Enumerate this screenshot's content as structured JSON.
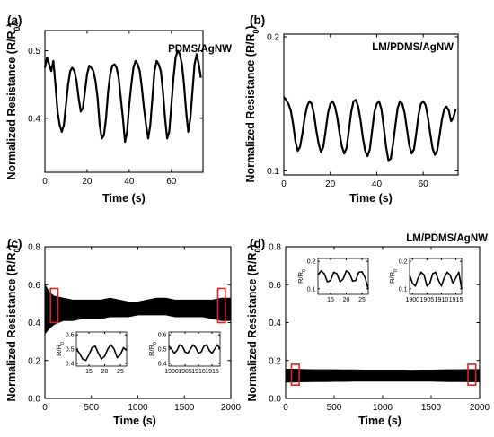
{
  "chart_data": [
    {
      "id": "a",
      "type": "line",
      "panel_label": "(a)",
      "annotation": "PDMS/AgNW",
      "xlabel": "Time (s)",
      "ylabel": "Normalized Resistance (R/R0)",
      "xlim": [
        0,
        75
      ],
      "ylim": [
        0.32,
        0.53
      ],
      "x_ticks": [
        0,
        20,
        40,
        60
      ],
      "y_ticks": [
        0.4,
        0.5
      ],
      "y_tick_labels": [
        "0.4",
        "0.5"
      ],
      "series": [
        {
          "color": "#000000",
          "x": [
            0,
            1,
            2,
            3,
            4,
            5,
            6,
            7,
            8,
            9,
            10,
            11,
            12,
            13,
            14,
            15,
            16,
            17,
            18,
            19,
            20,
            21,
            22,
            23,
            24,
            25,
            26,
            27,
            28,
            29,
            30,
            31,
            32,
            33,
            34,
            35,
            36,
            37,
            38,
            39,
            40,
            41,
            42,
            43,
            44,
            45,
            46,
            47,
            48,
            49,
            50,
            51,
            52,
            53,
            54,
            55,
            56,
            57,
            58,
            59,
            60,
            61,
            62,
            63,
            64,
            65,
            66,
            67,
            68,
            69,
            70,
            71,
            72,
            73,
            74
          ],
          "y": [
            0.475,
            0.49,
            0.48,
            0.47,
            0.485,
            0.45,
            0.41,
            0.39,
            0.38,
            0.39,
            0.42,
            0.45,
            0.47,
            0.475,
            0.47,
            0.455,
            0.43,
            0.41,
            0.415,
            0.44,
            0.465,
            0.478,
            0.475,
            0.47,
            0.455,
            0.43,
            0.39,
            0.37,
            0.375,
            0.4,
            0.44,
            0.465,
            0.478,
            0.48,
            0.475,
            0.46,
            0.43,
            0.4,
            0.365,
            0.38,
            0.42,
            0.45,
            0.475,
            0.485,
            0.48,
            0.47,
            0.445,
            0.415,
            0.39,
            0.37,
            0.39,
            0.43,
            0.47,
            0.485,
            0.48,
            0.47,
            0.44,
            0.4,
            0.37,
            0.38,
            0.42,
            0.46,
            0.49,
            0.5,
            0.495,
            0.48,
            0.45,
            0.41,
            0.38,
            0.4,
            0.44,
            0.48,
            0.495,
            0.48,
            0.46
          ]
        }
      ]
    },
    {
      "id": "b",
      "type": "line",
      "panel_label": "(b)",
      "annotation": "LM/PDMS/AgNW",
      "xlabel": "Time (s)",
      "ylabel": "Normalized Resistance (R/R0)",
      "xlim": [
        0,
        75
      ],
      "ylim": [
        0.097,
        0.202
      ],
      "x_ticks": [
        0,
        20,
        40,
        60
      ],
      "y_ticks": [
        0.1,
        0.2
      ],
      "y_tick_labels": [
        "0.1",
        "0.2"
      ],
      "series": [
        {
          "color": "#000000",
          "x": [
            0,
            1,
            2,
            3,
            4,
            5,
            6,
            7,
            8,
            9,
            10,
            11,
            12,
            13,
            14,
            15,
            16,
            17,
            18,
            19,
            20,
            21,
            22,
            23,
            24,
            25,
            26,
            27,
            28,
            29,
            30,
            31,
            32,
            33,
            34,
            35,
            36,
            37,
            38,
            39,
            40,
            41,
            42,
            43,
            44,
            45,
            46,
            47,
            48,
            49,
            50,
            51,
            52,
            53,
            54,
            55,
            56,
            57,
            58,
            59,
            60,
            61,
            62,
            63,
            64,
            65,
            66,
            67,
            68,
            69,
            70,
            71,
            72,
            73,
            74
          ],
          "y": [
            0.155,
            0.153,
            0.15,
            0.145,
            0.135,
            0.122,
            0.115,
            0.118,
            0.128,
            0.14,
            0.148,
            0.152,
            0.15,
            0.142,
            0.13,
            0.12,
            0.114,
            0.118,
            0.13,
            0.143,
            0.15,
            0.152,
            0.148,
            0.14,
            0.128,
            0.118,
            0.113,
            0.117,
            0.13,
            0.144,
            0.152,
            0.153,
            0.148,
            0.138,
            0.125,
            0.115,
            0.111,
            0.116,
            0.13,
            0.144,
            0.15,
            0.152,
            0.146,
            0.133,
            0.118,
            0.108,
            0.109,
            0.12,
            0.134,
            0.147,
            0.152,
            0.15,
            0.143,
            0.131,
            0.119,
            0.113,
            0.116,
            0.128,
            0.142,
            0.15,
            0.152,
            0.149,
            0.14,
            0.128,
            0.117,
            0.112,
            0.115,
            0.126,
            0.138,
            0.146,
            0.148,
            0.145,
            0.137,
            0.14,
            0.146
          ]
        }
      ]
    },
    {
      "id": "c",
      "type": "line",
      "panel_label": "(c)",
      "xlabel": "Time (s)",
      "ylabel": "Normalized Resistance (R/R0)",
      "xlim": [
        0,
        2000
      ],
      "ylim": [
        0,
        0.8
      ],
      "x_ticks": [
        0,
        500,
        1000,
        1500,
        2000
      ],
      "y_ticks": [
        0,
        0.2,
        0.4,
        0.6,
        0.8
      ],
      "y_tick_labels": [
        "0.0",
        "0.2",
        "0.4",
        "0.6",
        "0.8"
      ],
      "band": {
        "x": [
          0,
          50,
          100,
          200,
          300,
          400,
          500,
          600,
          700,
          800,
          900,
          1000,
          1100,
          1200,
          1300,
          1400,
          1500,
          1600,
          1700,
          1800,
          1900,
          2000
        ],
        "upper": [
          0.6,
          0.56,
          0.54,
          0.53,
          0.52,
          0.52,
          0.52,
          0.52,
          0.53,
          0.52,
          0.51,
          0.51,
          0.52,
          0.53,
          0.53,
          0.52,
          0.52,
          0.52,
          0.52,
          0.52,
          0.53,
          0.53
        ],
        "lower": [
          0.34,
          0.37,
          0.39,
          0.41,
          0.41,
          0.42,
          0.42,
          0.42,
          0.43,
          0.43,
          0.43,
          0.44,
          0.44,
          0.44,
          0.44,
          0.43,
          0.43,
          0.43,
          0.43,
          0.42,
          0.41,
          0.41
        ],
        "color": "#000000"
      },
      "highlight_ranges": [
        [
          60,
          140
        ],
        [
          1860,
          1940
        ]
      ],
      "highlight_y": [
        0.4,
        0.58
      ],
      "highlight_color": "#e02020",
      "insets": [
        {
          "ylabel": "R/R0",
          "xlim": [
            11,
            27
          ],
          "ylim": [
            0.38,
            0.62
          ],
          "x_ticks": [
            15,
            20,
            25
          ],
          "y_ticks": [
            0.4,
            0.5,
            0.6
          ],
          "y_tick_labels": [
            "0.4",
            "0.5",
            "0.6"
          ],
          "x": [
            11,
            12,
            13,
            14,
            15,
            16,
            17,
            18,
            19,
            20,
            21,
            22,
            23,
            24,
            25,
            26,
            27
          ],
          "y": [
            0.5,
            0.47,
            0.43,
            0.42,
            0.46,
            0.51,
            0.52,
            0.47,
            0.43,
            0.45,
            0.5,
            0.53,
            0.5,
            0.44,
            0.46,
            0.51,
            0.49
          ]
        },
        {
          "ylabel": "R/R0",
          "xlim": [
            1899,
            1918
          ],
          "ylim": [
            0.38,
            0.62
          ],
          "x_ticks": [
            1900,
            1905,
            1910,
            1915
          ],
          "y_ticks": [
            0.4,
            0.5,
            0.6
          ],
          "y_tick_labels": [
            "0.4",
            "0.5",
            "0.6"
          ],
          "x": [
            1899,
            1900,
            1901,
            1902,
            1903,
            1904,
            1905,
            1906,
            1907,
            1908,
            1909,
            1910,
            1911,
            1912,
            1913,
            1914,
            1915,
            1916,
            1917,
            1918
          ],
          "y": [
            0.52,
            0.5,
            0.47,
            0.49,
            0.53,
            0.52,
            0.48,
            0.47,
            0.5,
            0.53,
            0.51,
            0.47,
            0.48,
            0.52,
            0.53,
            0.49,
            0.47,
            0.5,
            0.53,
            0.5
          ]
        }
      ]
    },
    {
      "id": "d",
      "type": "line",
      "panel_label": "(d)",
      "annotation": "LM/PDMS/AgNW",
      "xlabel": "Time (s)",
      "ylabel": "Normalized Resistance (R/R0)",
      "xlim": [
        0,
        2000
      ],
      "ylim": [
        0,
        0.8
      ],
      "x_ticks": [
        0,
        500,
        1000,
        1500,
        2000
      ],
      "y_ticks": [
        0,
        0.2,
        0.4,
        0.6,
        0.8
      ],
      "y_tick_labels": [
        "0.0",
        "0.2",
        "0.4",
        "0.6",
        "0.8"
      ],
      "band": {
        "x": [
          0,
          100,
          200,
          300,
          400,
          500,
          600,
          700,
          800,
          900,
          1000,
          1100,
          1200,
          1300,
          1400,
          1500,
          1600,
          1700,
          1800,
          1900,
          2000
        ],
        "upper": [
          0.155,
          0.155,
          0.153,
          0.152,
          0.152,
          0.152,
          0.151,
          0.151,
          0.15,
          0.15,
          0.15,
          0.15,
          0.15,
          0.149,
          0.15,
          0.15,
          0.151,
          0.152,
          0.152,
          0.153,
          0.153
        ],
        "lower": [
          0.085,
          0.086,
          0.087,
          0.088,
          0.088,
          0.089,
          0.089,
          0.09,
          0.09,
          0.09,
          0.09,
          0.09,
          0.09,
          0.09,
          0.09,
          0.09,
          0.089,
          0.088,
          0.088,
          0.087,
          0.087
        ],
        "color": "#000000"
      },
      "highlight_ranges": [
        [
          60,
          140
        ],
        [
          1880,
          1960
        ]
      ],
      "highlight_y": [
        0.07,
        0.18
      ],
      "highlight_color": "#e02020",
      "insets": [
        {
          "ylabel": "R/R0",
          "xlim": [
            11,
            27
          ],
          "ylim": [
            0.08,
            0.21
          ],
          "x_ticks": [
            15,
            20,
            25
          ],
          "y_ticks": [
            0.1,
            0.2
          ],
          "y_tick_labels": [
            "0.1",
            "0.2"
          ],
          "x": [
            11,
            12,
            13,
            14,
            15,
            16,
            17,
            18,
            19,
            20,
            21,
            22,
            23,
            24,
            25,
            26,
            27
          ],
          "y": [
            0.15,
            0.165,
            0.155,
            0.125,
            0.13,
            0.16,
            0.155,
            0.125,
            0.135,
            0.165,
            0.158,
            0.128,
            0.13,
            0.16,
            0.162,
            0.14,
            0.1
          ]
        },
        {
          "ylabel": "R/R0",
          "xlim": [
            1899,
            1917
          ],
          "ylim": [
            0.08,
            0.21
          ],
          "x_ticks": [
            1900,
            1905,
            1910,
            1915
          ],
          "y_ticks": [
            0.1,
            0.2
          ],
          "y_tick_labels": [
            "0.1",
            "0.2"
          ],
          "x": [
            1899,
            1900,
            1901,
            1902,
            1903,
            1904,
            1905,
            1906,
            1907,
            1908,
            1909,
            1910,
            1911,
            1912,
            1913,
            1914,
            1915,
            1916,
            1917
          ],
          "y": [
            0.15,
            0.12,
            0.11,
            0.14,
            0.16,
            0.15,
            0.11,
            0.12,
            0.155,
            0.16,
            0.13,
            0.11,
            0.14,
            0.16,
            0.15,
            0.12,
            0.14,
            0.16,
            0.1
          ]
        }
      ]
    }
  ]
}
